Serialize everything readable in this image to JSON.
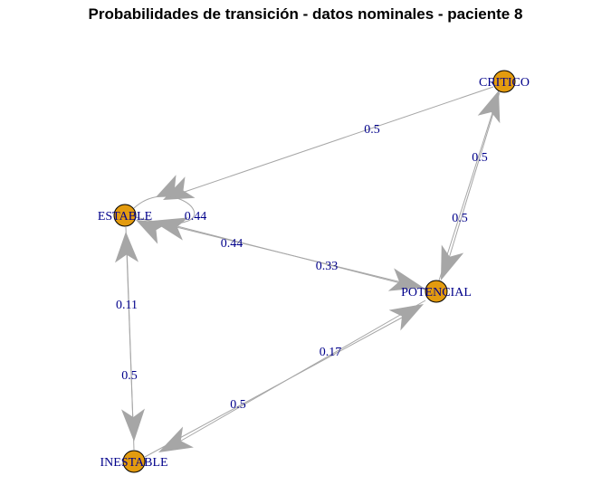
{
  "title": "Probabilidades de transición - datos nominales -  paciente 8",
  "colors": {
    "node": "#e39b0f",
    "edge": "#a6a6a6",
    "label": "#00008b"
  },
  "nodes": [
    {
      "id": "critico",
      "label": "CRITICO"
    },
    {
      "id": "estable",
      "label": "ESTABLE"
    },
    {
      "id": "potencial",
      "label": "POTENCIAL"
    },
    {
      "id": "inestable",
      "label": "INESTABLE"
    }
  ],
  "edges": [
    {
      "id": "critico-estable",
      "from": "critico",
      "to": "estable",
      "label": "0.5"
    },
    {
      "id": "potencial-critico",
      "from": "potencial",
      "to": "critico",
      "label": "0.5"
    },
    {
      "id": "critico-potencial",
      "from": "critico",
      "to": "potencial",
      "label": "0.5"
    },
    {
      "id": "estable-estable",
      "from": "estable",
      "to": "estable",
      "label": "0.44"
    },
    {
      "id": "potencial-estable",
      "from": "potencial",
      "to": "estable",
      "label": "0.44"
    },
    {
      "id": "estable-potencial",
      "from": "estable",
      "to": "potencial",
      "label": "0.33"
    },
    {
      "id": "inestable-estable",
      "from": "inestable",
      "to": "estable",
      "label": "0.11"
    },
    {
      "id": "estable-inestable",
      "from": "estable",
      "to": "inestable",
      "label": "0.5"
    },
    {
      "id": "inestable-potencial",
      "from": "inestable",
      "to": "potencial",
      "label": "0.17"
    },
    {
      "id": "potencial-inestable",
      "from": "potencial",
      "to": "inestable",
      "label": "0.5"
    }
  ]
}
